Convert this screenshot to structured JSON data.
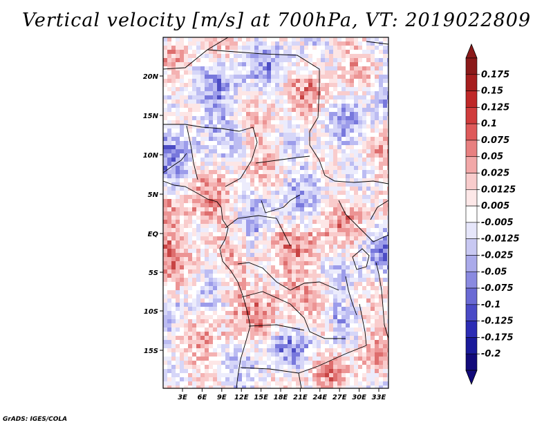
{
  "title": "Vertical velocity [m/s] at 700hPa, VT: 2019022809",
  "map": {
    "lat_ticks": [
      "20N",
      "15N",
      "10N",
      "5N",
      "EQ",
      "5S",
      "10S",
      "15S"
    ],
    "lon_ticks": [
      "3E",
      "6E",
      "9E",
      "12E",
      "15E",
      "18E",
      "21E",
      "24E",
      "27E",
      "30E",
      "33E"
    ],
    "field": "vertical velocity at 700hPa",
    "colors": {
      "sink": "#d0d8f8",
      "rise": "#fad0d0",
      "strong_rise": "#b82020",
      "strong_sink": "#2020a0"
    }
  },
  "colorbar": {
    "labels": [
      "0.175",
      "0.15",
      "0.125",
      "0.1",
      "0.075",
      "0.05",
      "0.025",
      "0.0125",
      "0.005",
      "-0.005",
      "-0.0125",
      "-0.025",
      "-0.05",
      "-0.075",
      "-0.1",
      "-0.125",
      "-0.175",
      "-0.2"
    ],
    "colors": [
      "#8b1a1a",
      "#a61e1e",
      "#bf2828",
      "#d03c3c",
      "#de5a5a",
      "#e88080",
      "#f2a8a8",
      "#f8cccc",
      "#fde8e8",
      "#ffffff",
      "#e6e6fa",
      "#c8c8f2",
      "#aaaaea",
      "#8a8ae0",
      "#6a6ad4",
      "#4a4ac6",
      "#2c2cb4",
      "#1a1a9a",
      "#120a7a"
    ]
  },
  "credit": "GrADS: IGES/COLA"
}
